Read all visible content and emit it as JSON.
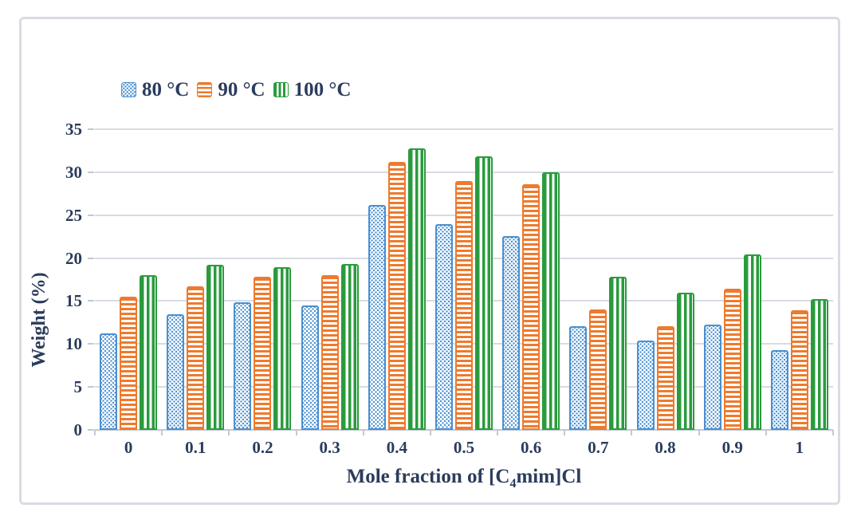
{
  "figure": {
    "background": "#ffffff",
    "border_color": "#d9dce2"
  },
  "chart_data": {
    "type": "bar",
    "title": "",
    "categories": [
      "0",
      "0.1",
      "0.2",
      "0.3",
      "0.4",
      "0.5",
      "0.6",
      "0.7",
      "0.8",
      "0.9",
      "1"
    ],
    "series": [
      {
        "name": "80 °C",
        "color": "#4a90d0",
        "pattern": "speckle-dots",
        "values": [
          11.2,
          13.5,
          14.9,
          14.5,
          26.2,
          24.0,
          22.6,
          12.1,
          10.4,
          12.3,
          9.3
        ]
      },
      {
        "name": "90 °C",
        "color": "#ee7a2d",
        "pattern": "horizontal-stripes",
        "values": [
          15.5,
          16.7,
          17.8,
          18.0,
          31.2,
          29.0,
          28.6,
          14.0,
          12.1,
          16.4,
          13.9
        ]
      },
      {
        "name": "100 °C",
        "color": "#2a9b3d",
        "pattern": "vertical-stripes",
        "values": [
          18.0,
          19.2,
          18.9,
          19.3,
          32.8,
          31.8,
          30.0,
          17.8,
          16.0,
          20.4,
          15.2
        ]
      }
    ],
    "xlabel": "Mole fraction of [C4mim]Cl",
    "xlabel_parts": {
      "prefix": "Mole fraction of [C",
      "subscript": "4",
      "suffix": "mim]Cl"
    },
    "ylabel": "Weight (%)",
    "ylim": [
      0,
      35
    ],
    "yticks": [
      0,
      5,
      10,
      15,
      20,
      25,
      30,
      35
    ],
    "grid": "horizontal-only",
    "legend_position": "top-left-inside",
    "text_color": "#2b3c5c",
    "gridline_color": "#d7dbe3",
    "axis_line_color": "#c3c9d4"
  }
}
